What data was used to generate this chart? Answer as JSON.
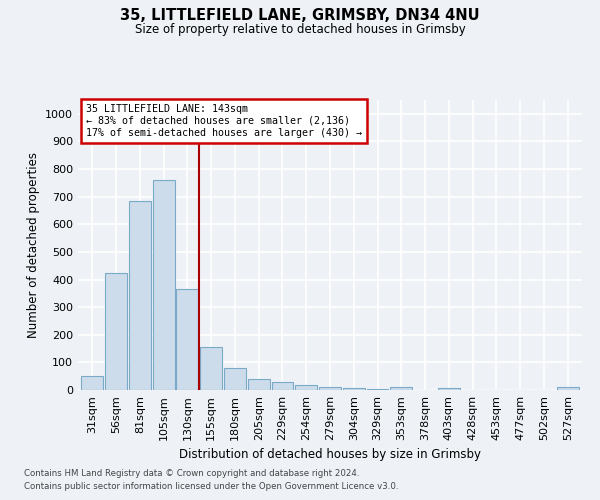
{
  "title1": "35, LITTLEFIELD LANE, GRIMSBY, DN34 4NU",
  "title2": "Size of property relative to detached houses in Grimsby",
  "xlabel": "Distribution of detached houses by size in Grimsby",
  "ylabel": "Number of detached properties",
  "bar_labels": [
    "31sqm",
    "56sqm",
    "81sqm",
    "105sqm",
    "130sqm",
    "155sqm",
    "180sqm",
    "205sqm",
    "229sqm",
    "254sqm",
    "279sqm",
    "304sqm",
    "329sqm",
    "353sqm",
    "378sqm",
    "403sqm",
    "428sqm",
    "453sqm",
    "477sqm",
    "502sqm",
    "527sqm"
  ],
  "bar_values": [
    50,
    425,
    685,
    760,
    365,
    155,
    78,
    40,
    28,
    18,
    12,
    8,
    5,
    10,
    0,
    8,
    0,
    0,
    0,
    0,
    10
  ],
  "bar_color": "#ccdcea",
  "bar_edge_color": "#7aaac8",
  "annotation_line1": "35 LITTLEFIELD LANE: 143sqm",
  "annotation_line2": "← 83% of detached houses are smaller (2,136)",
  "annotation_line3": "17% of semi-detached houses are larger (430) →",
  "annotation_box_color": "#ffffff",
  "annotation_border_color": "#cc0000",
  "vline_color": "#aa0000",
  "ylim": [
    0,
    1050
  ],
  "yticks": [
    0,
    100,
    200,
    300,
    400,
    500,
    600,
    700,
    800,
    900,
    1000
  ],
  "footnote1": "Contains HM Land Registry data © Crown copyright and database right 2024.",
  "footnote2": "Contains public sector information licensed under the Open Government Licence v3.0.",
  "bg_color": "#eef2f7",
  "grid_color": "#ffffff"
}
